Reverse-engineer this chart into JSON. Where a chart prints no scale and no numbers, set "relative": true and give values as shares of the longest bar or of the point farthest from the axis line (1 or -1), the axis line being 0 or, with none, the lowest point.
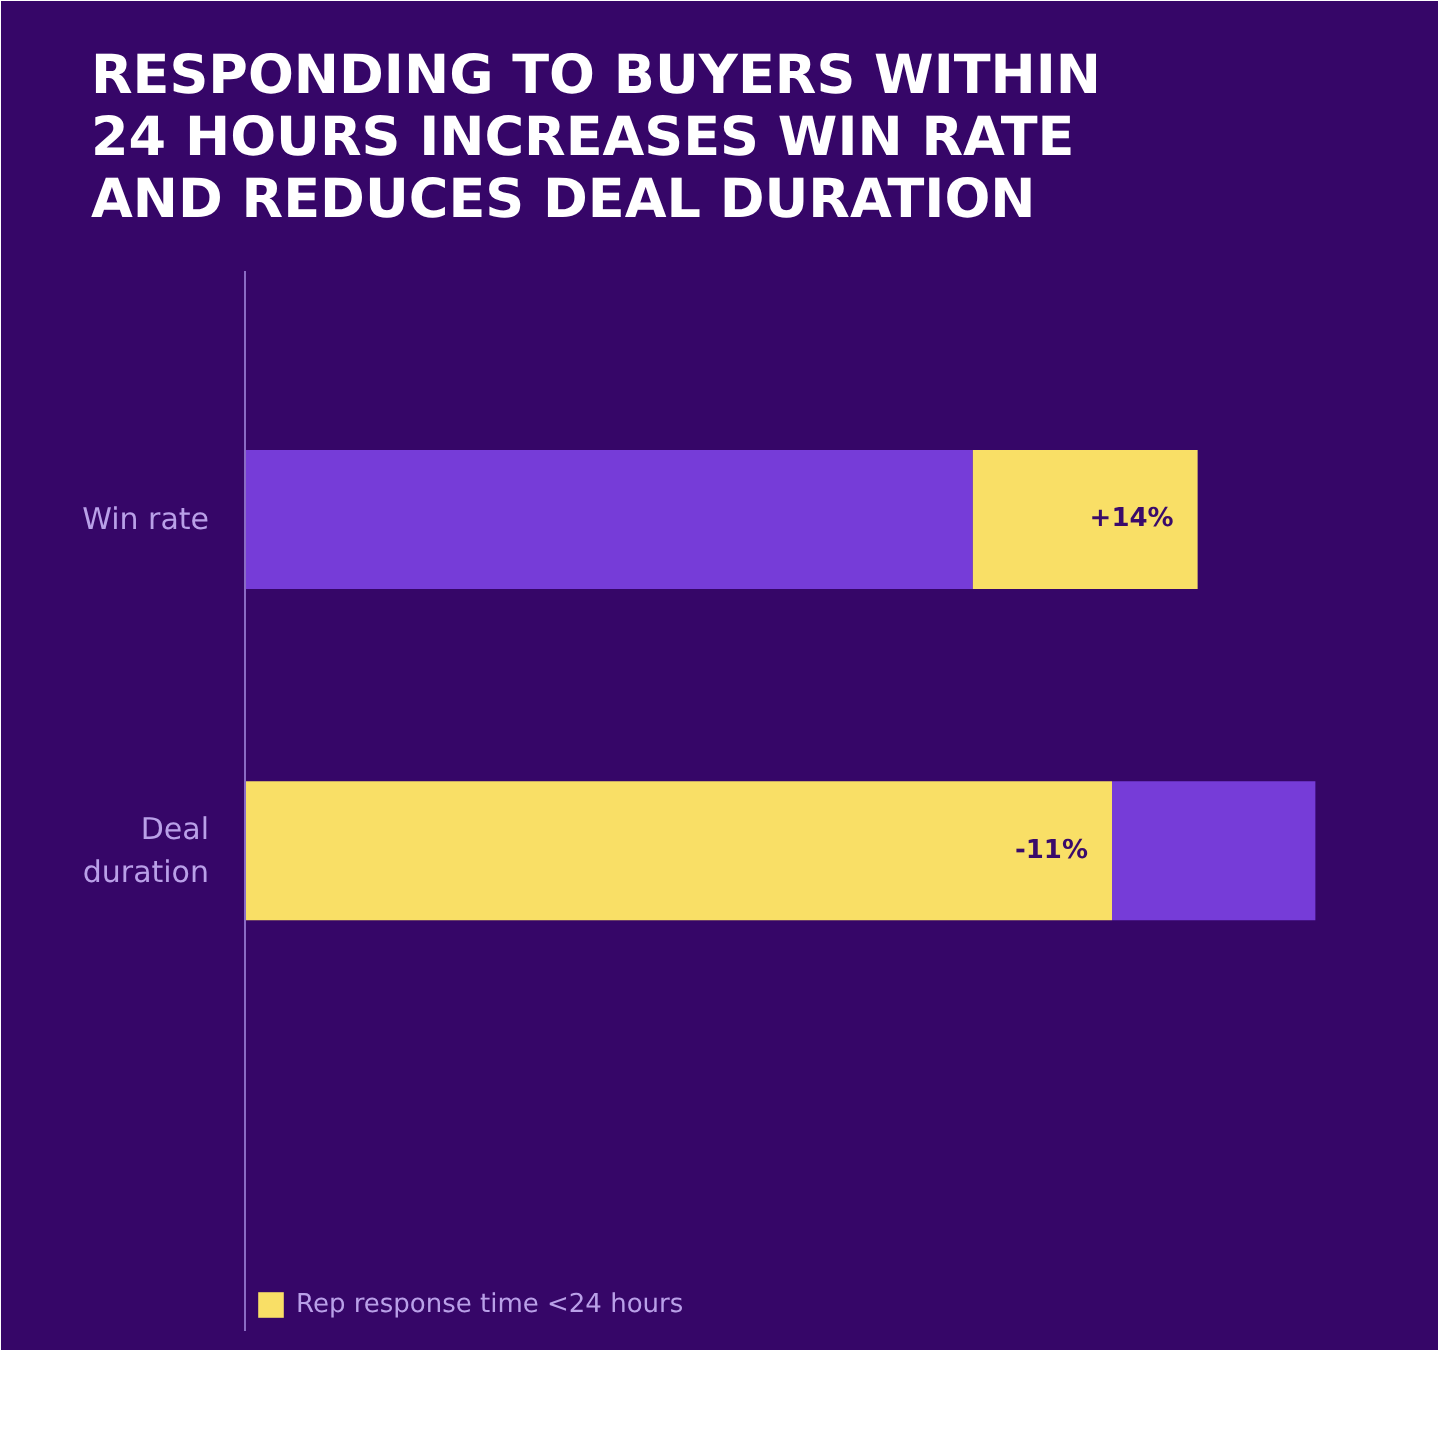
{
  "chart_data": {
    "type": "bar",
    "orientation": "horizontal",
    "stacked": true,
    "relative": true,
    "title": "RESPONDING TO BUYERS WITHIN 24 HOURS INCREASES WIN RATE AND REDUCES DEAL DURATION",
    "categories": [
      "Win rate",
      "Deal\nduration"
    ],
    "series": [
      {
        "color": "#763cd8",
        "values": [
          0.68,
          null
        ]
      },
      {
        "name": "Rep response time <24 hours",
        "color": "#f9df66",
        "values": [
          0.21,
          0.81
        ]
      },
      {
        "color": "#763cd8",
        "values": [
          null,
          0.19
        ]
      }
    ],
    "annotations": [
      "+14%",
      "-11%"
    ],
    "grid": false,
    "legend": "bottom left"
  }
}
